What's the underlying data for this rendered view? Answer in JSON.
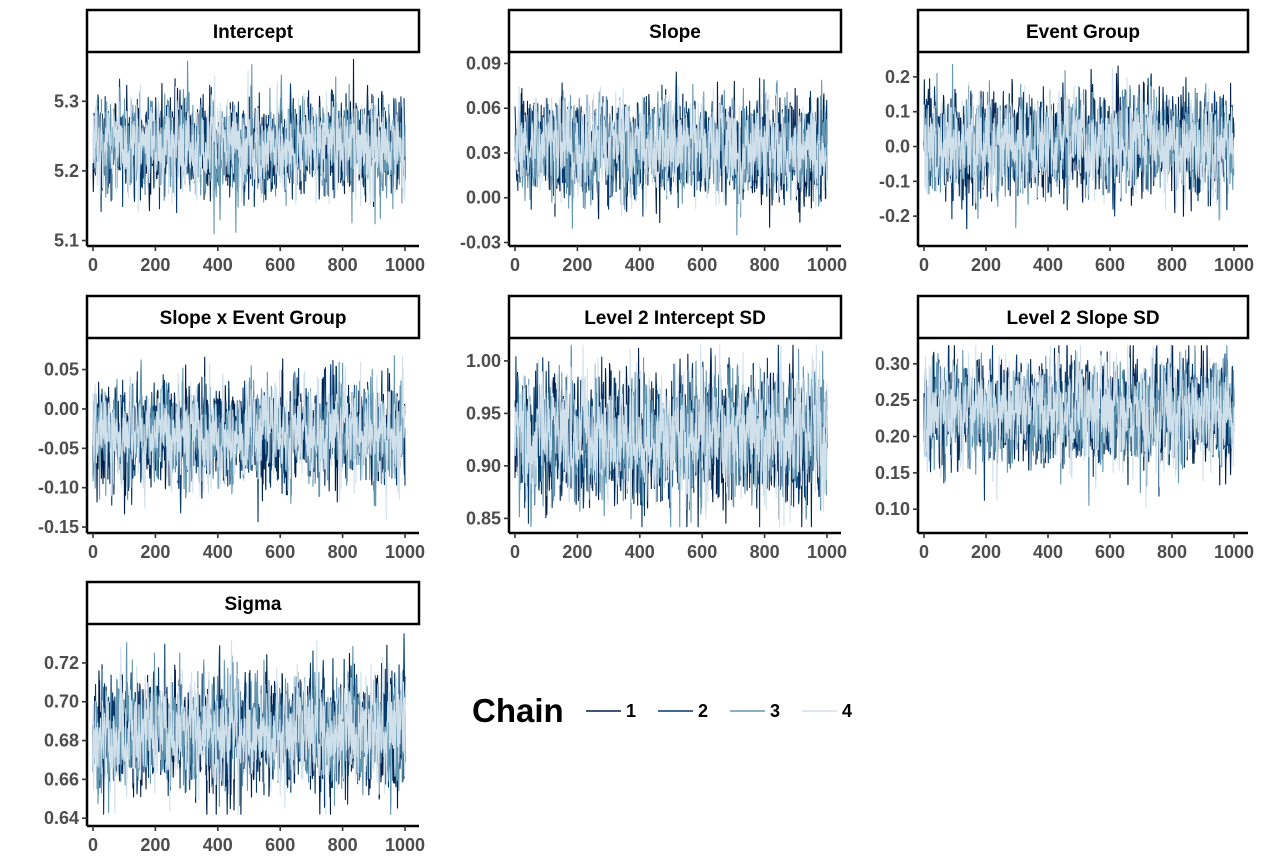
{
  "chart_data": {
    "type": "line",
    "facets": [
      {
        "title": "Intercept",
        "xlim": [
          0,
          1000
        ],
        "ylim": [
          5.095,
          5.365
        ],
        "xticks": [
          0,
          200,
          400,
          600,
          800,
          1000
        ],
        "yticks": [
          5.1,
          5.2,
          5.3
        ],
        "ytick_labels": [
          "5.1",
          "5.2",
          "5.3"
        ],
        "center": 5.235,
        "sd": 0.032,
        "clip": [
          5.11,
          5.36
        ]
      },
      {
        "title": "Slope",
        "xlim": [
          0,
          1000
        ],
        "ylim": [
          -0.031,
          0.095
        ],
        "xticks": [
          0,
          200,
          400,
          600,
          800,
          1000
        ],
        "yticks": [
          -0.03,
          0.0,
          0.03,
          0.06,
          0.09
        ],
        "ytick_labels": [
          "-0.03",
          "0.00",
          "0.03",
          "0.06",
          "0.09"
        ],
        "center": 0.034,
        "sd": 0.016,
        "clip": [
          -0.025,
          0.092
        ]
      },
      {
        "title": "Event Group",
        "xlim": [
          0,
          1000
        ],
        "ylim": [
          -0.28,
          0.26
        ],
        "xticks": [
          0,
          200,
          400,
          600,
          800,
          1000
        ],
        "yticks": [
          -0.2,
          -0.1,
          0.0,
          0.1,
          0.2
        ],
        "ytick_labels": [
          "-0.2",
          "-0.1",
          "0.0",
          "0.1",
          "0.2"
        ],
        "center": 0.01,
        "sd": 0.07,
        "clip": [
          -0.27,
          0.25
        ]
      },
      {
        "title": "Slope x Event Group",
        "xlim": [
          0,
          1000
        ],
        "ylim": [
          -0.155,
          0.085
        ],
        "xticks": [
          0,
          200,
          400,
          600,
          800,
          1000
        ],
        "yticks": [
          -0.15,
          -0.1,
          -0.05,
          0.0,
          0.05
        ],
        "ytick_labels": [
          "-0.15",
          "-0.10",
          "-0.05",
          "0.00",
          "0.05"
        ],
        "center": -0.03,
        "sd": 0.03,
        "clip": [
          -0.148,
          0.08
        ]
      },
      {
        "title": "Level 2 Intercept SD",
        "xlim": [
          0,
          1000
        ],
        "ylim": [
          0.838,
          1.018
        ],
        "xticks": [
          0,
          200,
          400,
          600,
          800,
          1000
        ],
        "yticks": [
          0.85,
          0.9,
          0.95,
          1.0
        ],
        "ytick_labels": [
          "0.85",
          "0.90",
          "0.95",
          "1.00"
        ],
        "center": 0.928,
        "sd": 0.03,
        "clip": [
          0.842,
          1.015
        ]
      },
      {
        "title": "Level 2 Slope SD",
        "xlim": [
          0,
          1000
        ],
        "ylim": [
          0.07,
          0.33
        ],
        "xticks": [
          0,
          200,
          400,
          600,
          800,
          1000
        ],
        "yticks": [
          0.1,
          0.15,
          0.2,
          0.25,
          0.3
        ],
        "ytick_labels": [
          "0.10",
          "0.15",
          "0.20",
          "0.25",
          "0.30"
        ],
        "center": 0.235,
        "sd": 0.035,
        "clip": [
          0.075,
          0.325
        ]
      },
      {
        "title": "Sigma",
        "xlim": [
          0,
          1000
        ],
        "ylim": [
          0.637,
          0.738
        ],
        "xticks": [
          0,
          200,
          400,
          600,
          800,
          1000
        ],
        "yticks": [
          0.64,
          0.66,
          0.68,
          0.7,
          0.72
        ],
        "ytick_labels": [
          "0.64",
          "0.66",
          "0.68",
          "0.70",
          "0.72"
        ],
        "center": 0.684,
        "sd": 0.014,
        "clip": [
          0.642,
          0.735
        ]
      }
    ],
    "legend": {
      "title": "Chain",
      "entries": [
        {
          "label": "1",
          "color": "#011f4b"
        },
        {
          "label": "2",
          "color": "#03396c"
        },
        {
          "label": "3",
          "color": "#6497b1"
        },
        {
          "label": "4",
          "color": "#d1e1ec"
        }
      ],
      "placement": "bottom-right"
    },
    "iterations": 1000,
    "grid": false
  }
}
